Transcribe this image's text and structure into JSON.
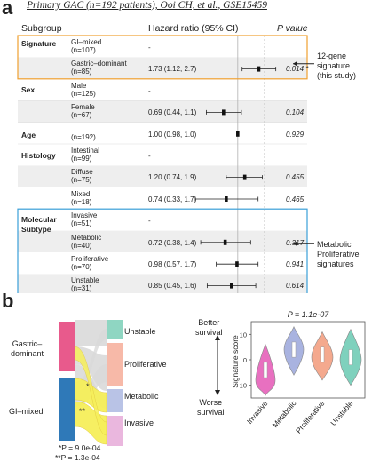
{
  "panel_a": {
    "letter": "a",
    "title": "Primary GAC (n=192 patients), Ooi CH, et al., GSE15459",
    "headers": {
      "subgroup": "Subgroup",
      "hr": "Hazard ratio (95% CI)",
      "pvalue": "P value"
    },
    "groups": [
      {
        "name": "Signature",
        "top": 44
      },
      {
        "name": "Sex",
        "top": 96
      },
      {
        "name": "Age",
        "top": 147
      },
      {
        "name": "Histology",
        "top": 170
      },
      {
        "name": "Molecular",
        "name2": "Subtype",
        "top": 242
      }
    ],
    "rows": [
      {
        "label": "GI–mixed",
        "n": "(n=107)",
        "hr_text": "-",
        "p": "",
        "hr": null,
        "lo": null,
        "hi": null
      },
      {
        "label": "Gastric–dominant",
        "n": "(n=85)",
        "hr_text": "1.73 (1.12, 2.7)",
        "p": "0.014 *",
        "hr": 1.73,
        "lo": 1.12,
        "hi": 2.7
      },
      {
        "label": "Male",
        "n": "(n=125)",
        "hr_text": "-",
        "p": "",
        "hr": null,
        "lo": null,
        "hi": null
      },
      {
        "label": "Female",
        "n": "(n=67)",
        "hr_text": "0.69 (0.44, 1.1)",
        "p": "0.104",
        "hr": 0.69,
        "lo": 0.44,
        "hi": 1.1
      },
      {
        "label": "",
        "n": "(n=192)",
        "hr_text": "1.00 (0.98, 1.0)",
        "p": "0.929",
        "hr": 1.0,
        "lo": 0.98,
        "hi": 1.02
      },
      {
        "label": "Intestinal",
        "n": "(n=99)",
        "hr_text": "-",
        "p": "",
        "hr": null,
        "lo": null,
        "hi": null
      },
      {
        "label": "Diffuse",
        "n": "(n=75)",
        "hr_text": "1.20 (0.74, 1.9)",
        "p": "0.455",
        "hr": 1.2,
        "lo": 0.74,
        "hi": 1.9
      },
      {
        "label": "Mixed",
        "n": "(n=18)",
        "hr_text": "0.74 (0.33, 1.7)",
        "p": "0.465",
        "hr": 0.74,
        "lo": 0.33,
        "hi": 1.7
      },
      {
        "label": "Invasive",
        "n": "(n=51)",
        "hr_text": "-",
        "p": "",
        "hr": null,
        "lo": null,
        "hi": null
      },
      {
        "label": "Metabolic",
        "n": "(n=40)",
        "hr_text": "0.72 (0.38, 1.4)",
        "p": "0.317",
        "hr": 0.72,
        "lo": 0.38,
        "hi": 1.4
      },
      {
        "label": "Proliferative",
        "n": "(n=70)",
        "hr_text": "0.98 (0.57, 1.7)",
        "p": "0.941",
        "hr": 0.98,
        "lo": 0.57,
        "hi": 1.7
      },
      {
        "label": "Unstable",
        "n": "(n=31)",
        "hr_text": "0.85 (0.45, 1.6)",
        "p": "0.614",
        "hr": 0.85,
        "lo": 0.45,
        "hi": 1.6
      }
    ],
    "axis_ticks": [
      "0.5",
      "1",
      "2"
    ],
    "annotations": [
      {
        "lines": [
          "12-gene",
          "signature",
          "(this study)"
        ]
      },
      {
        "lines": [
          "Metabolic",
          "Proliferative",
          "signatures"
        ]
      }
    ],
    "colors": {
      "signature_box": "#f0a030",
      "subtype_box": "#3a9fd8",
      "shade": "#eeeeee"
    }
  },
  "panel_b": {
    "letter": "b",
    "left_labels": [
      "Gastric–",
      "dominant",
      "GI–mixed"
    ],
    "right_labels": [
      "Unstable",
      "Proliferative",
      "Metabolic",
      "Invasive"
    ],
    "flow_marks": [
      "*",
      "**"
    ],
    "footnotes": [
      "*P = 9.0e-04",
      "**P = 1.3e-04"
    ],
    "colors": {
      "gastric": "#e85a8c",
      "gimixed": "#2f79b8",
      "unstable": "#8fd6c2",
      "proliferative": "#f7b9a8",
      "metabolic": "#b9c3e6",
      "invasive": "#eab7de",
      "flow_highlight": "#f6ef5a",
      "flow_grey": "#d9d9d9"
    },
    "violin": {
      "title": "P = 1.1e-07",
      "ylabel": "Signature score",
      "yticks": [
        "10",
        "0",
        "-10"
      ],
      "better": [
        "Better",
        "survival"
      ],
      "worse": [
        "Worse",
        "survival"
      ]
    }
  },
  "chart_data": [
    {
      "type": "forest",
      "title": "Primary GAC (n=192 patients), Ooi CH, et al., GSE15459",
      "xlabel": "Hazard ratio (95% CI)",
      "x_scale": "log",
      "reference_line": 1,
      "series": [
        {
          "subgroup": "Gastric–dominant",
          "hr": 1.73,
          "ci": [
            1.12,
            2.7
          ],
          "p": 0.014
        },
        {
          "subgroup": "Female",
          "hr": 0.69,
          "ci": [
            0.44,
            1.1
          ],
          "p": 0.104
        },
        {
          "subgroup": "Age",
          "hr": 1.0,
          "ci": [
            0.98,
            1.0
          ],
          "p": 0.929
        },
        {
          "subgroup": "Diffuse",
          "hr": 1.2,
          "ci": [
            0.74,
            1.9
          ],
          "p": 0.455
        },
        {
          "subgroup": "Mixed",
          "hr": 0.74,
          "ci": [
            0.33,
            1.7
          ],
          "p": 0.465
        },
        {
          "subgroup": "Metabolic",
          "hr": 0.72,
          "ci": [
            0.38,
            1.4
          ],
          "p": 0.317
        },
        {
          "subgroup": "Proliferative",
          "hr": 0.98,
          "ci": [
            0.57,
            1.7
          ],
          "p": 0.941
        },
        {
          "subgroup": "Unstable",
          "hr": 0.85,
          "ci": [
            0.45,
            1.6
          ],
          "p": 0.614
        }
      ]
    },
    {
      "type": "violin",
      "title": "P = 1.1e-07",
      "ylabel": "Signature score",
      "categories": [
        "Invasive",
        "Metabolic",
        "Proliferative",
        "Unstable"
      ],
      "ylim": [
        -15,
        15
      ],
      "medians": [
        -4,
        4,
        2,
        1
      ],
      "colors": [
        "#e870c0",
        "#a9b3e0",
        "#f4a98e",
        "#7fd1bd"
      ]
    }
  ]
}
